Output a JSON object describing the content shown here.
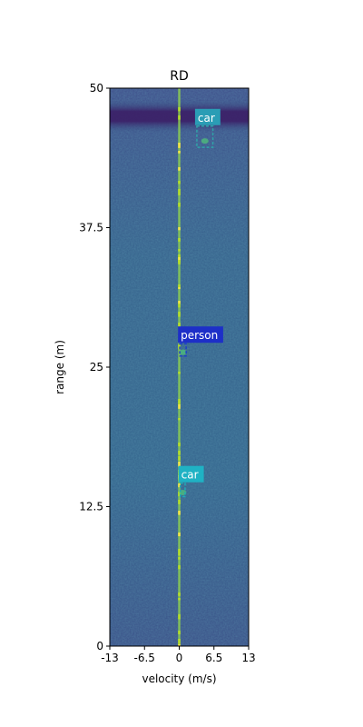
{
  "chart_data": {
    "type": "heatmap",
    "title": "RD",
    "xlabel": "velocity (m/s)",
    "ylabel": "range (m)",
    "xlim": [
      -13,
      13
    ],
    "ylim": [
      0,
      50
    ],
    "xticks": [
      -13,
      -6.5,
      0,
      6.5,
      13
    ],
    "xtick_labels": [
      "-13",
      "-6.5",
      "0",
      "6.5",
      "13"
    ],
    "yticks": [
      0,
      12.5,
      25,
      37.5,
      50
    ],
    "ytick_labels": [
      "0",
      "12.5",
      "25",
      "37.5",
      "50"
    ],
    "colormap": "viridis",
    "grid": false,
    "zero_doppler_line": {
      "velocity": 0,
      "color": "#8fd14f"
    },
    "detections": [
      {
        "label": "car",
        "velocity": [
          3.3,
          6.3
        ],
        "range": [
          44.7,
          46.6
        ],
        "box_color": "#2fa3a8",
        "label_bg": "#2a9db5"
      },
      {
        "label": "person",
        "velocity": [
          0.1,
          1.3
        ],
        "range": [
          26.0,
          27.1
        ],
        "box_color": "#1f3fc7",
        "label_bg": "#1d2fc8"
      },
      {
        "label": "car",
        "velocity": [
          0.2,
          1.1
        ],
        "range": [
          13.4,
          14.6
        ],
        "box_color": "#20a9b6",
        "label_bg": "#1fb2c4"
      }
    ]
  }
}
